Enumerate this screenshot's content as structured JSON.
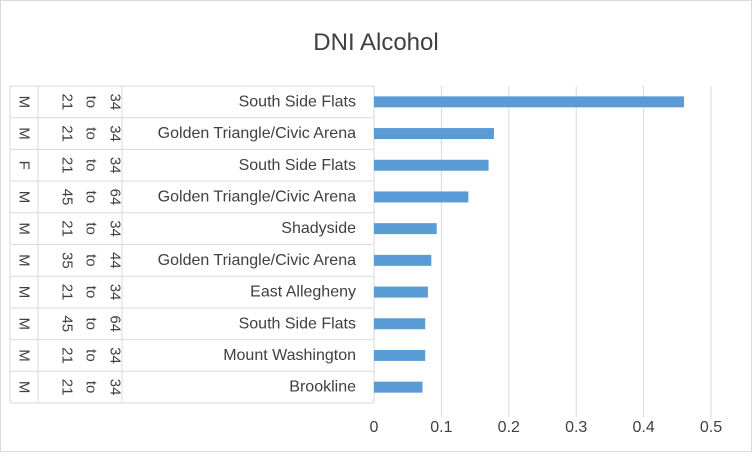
{
  "chart_data": {
    "type": "bar",
    "orientation": "horizontal",
    "title": "DNI Alcohol",
    "xlim": [
      0,
      0.5
    ],
    "x_ticks": [
      "0",
      "0.1",
      "0.2",
      "0.3",
      "0.4",
      "0.5"
    ],
    "grid": true,
    "bar_color": "#5b9bd5",
    "categories": [
      {
        "gender": "M",
        "age": [
          "21",
          "to",
          "34"
        ],
        "neighborhood": "South Side Flats"
      },
      {
        "gender": "M",
        "age": [
          "21",
          "to",
          "34"
        ],
        "neighborhood": "Golden Triangle/Civic Arena"
      },
      {
        "gender": "F",
        "age": [
          "21",
          "to",
          "34"
        ],
        "neighborhood": "South Side Flats"
      },
      {
        "gender": "M",
        "age": [
          "45",
          "to",
          "64"
        ],
        "neighborhood": "Golden Triangle/Civic Arena"
      },
      {
        "gender": "M",
        "age": [
          "21",
          "to",
          "34"
        ],
        "neighborhood": "Shadyside"
      },
      {
        "gender": "M",
        "age": [
          "35",
          "to",
          "44"
        ],
        "neighborhood": "Golden Triangle/Civic Arena"
      },
      {
        "gender": "M",
        "age": [
          "21",
          "to",
          "34"
        ],
        "neighborhood": "East Allegheny"
      },
      {
        "gender": "M",
        "age": [
          "45",
          "to",
          "64"
        ],
        "neighborhood": "South Side Flats"
      },
      {
        "gender": "M",
        "age": [
          "21",
          "to",
          "34"
        ],
        "neighborhood": "Mount Washington"
      },
      {
        "gender": "M",
        "age": [
          "21",
          "to",
          "34"
        ],
        "neighborhood": "Brookline"
      }
    ],
    "values": [
      0.46,
      0.178,
      0.17,
      0.14,
      0.093,
      0.085,
      0.08,
      0.076,
      0.076,
      0.072
    ]
  }
}
